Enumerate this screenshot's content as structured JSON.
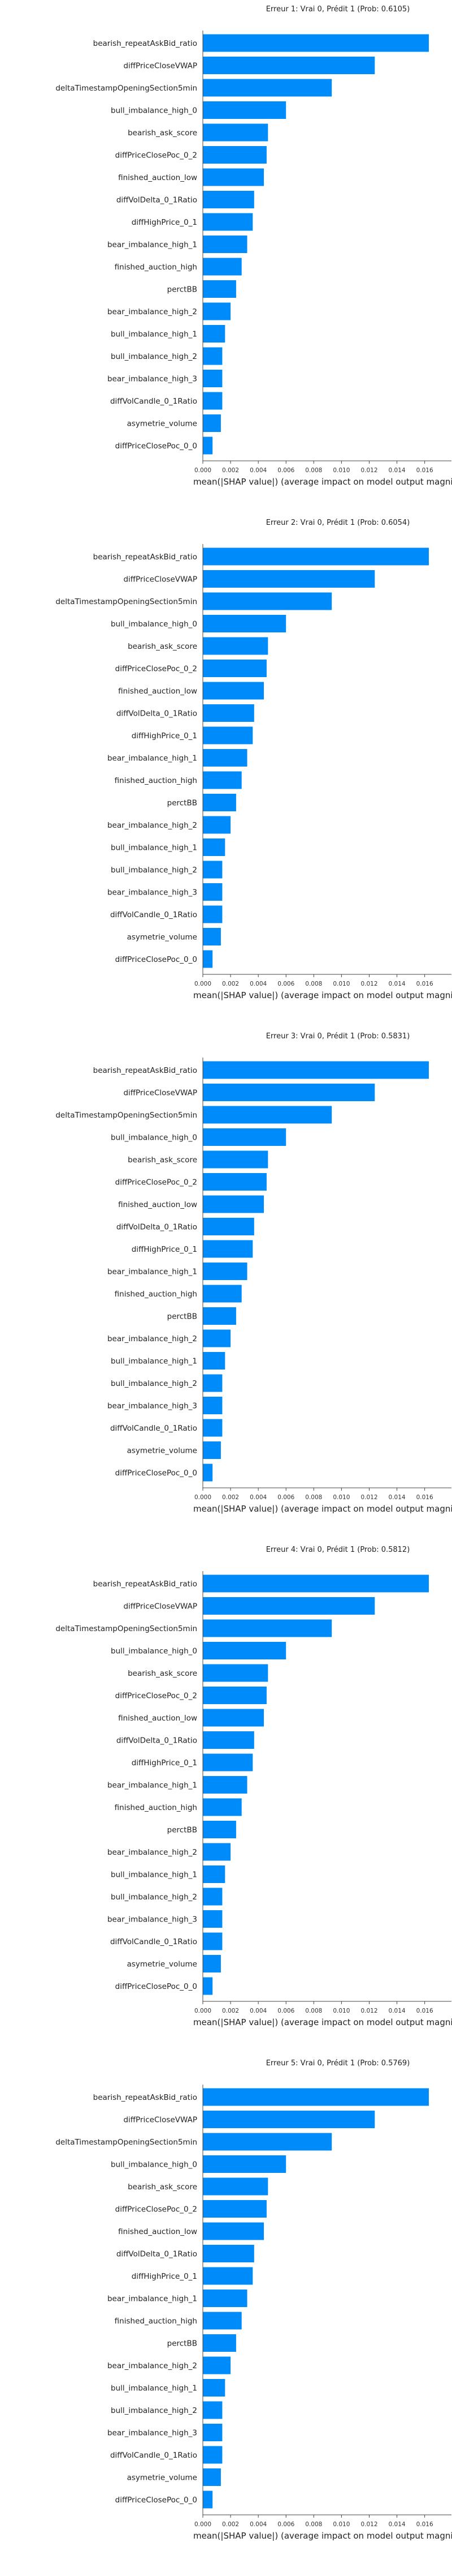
{
  "colors": {
    "bar": "#008bfb",
    "axis": "#444444",
    "text": "#222222",
    "background": "#ffffff"
  },
  "chart_data": [
    {
      "type": "bar",
      "orientation": "horizontal",
      "title": "Erreur 1: Vrai 0, Prédit 1 (Prob: 0.6105)",
      "xlabel": "mean(|SHAP value|) (average impact on model output magnitude)",
      "ylabel": "",
      "categories": [
        "bearish_repeatAskBid_ratio",
        "diffPriceCloseVWAP",
        "deltaTimestampOpeningSection5min",
        "bull_imbalance_high_0",
        "bearish_ask_score",
        "diffPriceClosePoc_0_2",
        "finished_auction_low",
        "diffVolDelta_0_1Ratio",
        "diffHighPrice_0_1",
        "bear_imbalance_high_1",
        "finished_auction_high",
        "perctBB",
        "bear_imbalance_high_2",
        "bull_imbalance_high_1",
        "bull_imbalance_high_2",
        "bear_imbalance_high_3",
        "diffVolCandle_0_1Ratio",
        "asymetrie_volume",
        "diffPriceClosePoc_0_0"
      ],
      "values": [
        0.0163,
        0.0124,
        0.0093,
        0.006,
        0.0047,
        0.0046,
        0.0044,
        0.0037,
        0.0036,
        0.0032,
        0.0028,
        0.0024,
        0.002,
        0.0016,
        0.0014,
        0.0014,
        0.0014,
        0.0013,
        0.0007
      ],
      "xlim": [
        0,
        0.0163
      ],
      "xticks": [
        "0.000",
        "0.002",
        "0.004",
        "0.006",
        "0.008",
        "0.010",
        "0.012",
        "0.014",
        "0.016"
      ],
      "grid": false
    },
    {
      "type": "bar",
      "orientation": "horizontal",
      "title": "Erreur 2: Vrai 0, Prédit 1 (Prob: 0.6054)",
      "xlabel": "mean(|SHAP value|) (average impact on model output magnitude)",
      "ylabel": "",
      "categories": [
        "bearish_repeatAskBid_ratio",
        "diffPriceCloseVWAP",
        "deltaTimestampOpeningSection5min",
        "bull_imbalance_high_0",
        "bearish_ask_score",
        "diffPriceClosePoc_0_2",
        "finished_auction_low",
        "diffVolDelta_0_1Ratio",
        "diffHighPrice_0_1",
        "bear_imbalance_high_1",
        "finished_auction_high",
        "perctBB",
        "bear_imbalance_high_2",
        "bull_imbalance_high_1",
        "bull_imbalance_high_2",
        "bear_imbalance_high_3",
        "diffVolCandle_0_1Ratio",
        "asymetrie_volume",
        "diffPriceClosePoc_0_0"
      ],
      "values": [
        0.0163,
        0.0124,
        0.0093,
        0.006,
        0.0047,
        0.0046,
        0.0044,
        0.0037,
        0.0036,
        0.0032,
        0.0028,
        0.0024,
        0.002,
        0.0016,
        0.0014,
        0.0014,
        0.0014,
        0.0013,
        0.0007
      ],
      "xlim": [
        0,
        0.0163
      ],
      "xticks": [
        "0.000",
        "0.002",
        "0.004",
        "0.006",
        "0.008",
        "0.010",
        "0.012",
        "0.014",
        "0.016"
      ],
      "grid": false
    },
    {
      "type": "bar",
      "orientation": "horizontal",
      "title": "Erreur 3: Vrai 0, Prédit 1 (Prob: 0.5831)",
      "xlabel": "mean(|SHAP value|) (average impact on model output magnitude)",
      "ylabel": "",
      "categories": [
        "bearish_repeatAskBid_ratio",
        "diffPriceCloseVWAP",
        "deltaTimestampOpeningSection5min",
        "bull_imbalance_high_0",
        "bearish_ask_score",
        "diffPriceClosePoc_0_2",
        "finished_auction_low",
        "diffVolDelta_0_1Ratio",
        "diffHighPrice_0_1",
        "bear_imbalance_high_1",
        "finished_auction_high",
        "perctBB",
        "bear_imbalance_high_2",
        "bull_imbalance_high_1",
        "bull_imbalance_high_2",
        "bear_imbalance_high_3",
        "diffVolCandle_0_1Ratio",
        "asymetrie_volume",
        "diffPriceClosePoc_0_0"
      ],
      "values": [
        0.0163,
        0.0124,
        0.0093,
        0.006,
        0.0047,
        0.0046,
        0.0044,
        0.0037,
        0.0036,
        0.0032,
        0.0028,
        0.0024,
        0.002,
        0.0016,
        0.0014,
        0.0014,
        0.0014,
        0.0013,
        0.0007
      ],
      "xlim": [
        0,
        0.0163
      ],
      "xticks": [
        "0.000",
        "0.002",
        "0.004",
        "0.006",
        "0.008",
        "0.010",
        "0.012",
        "0.014",
        "0.016"
      ],
      "grid": false
    },
    {
      "type": "bar",
      "orientation": "horizontal",
      "title": "Erreur 4: Vrai 0, Prédit 1 (Prob: 0.5812)",
      "xlabel": "mean(|SHAP value|) (average impact on model output magnitude)",
      "ylabel": "",
      "categories": [
        "bearish_repeatAskBid_ratio",
        "diffPriceCloseVWAP",
        "deltaTimestampOpeningSection5min",
        "bull_imbalance_high_0",
        "bearish_ask_score",
        "diffPriceClosePoc_0_2",
        "finished_auction_low",
        "diffVolDelta_0_1Ratio",
        "diffHighPrice_0_1",
        "bear_imbalance_high_1",
        "finished_auction_high",
        "perctBB",
        "bear_imbalance_high_2",
        "bull_imbalance_high_1",
        "bull_imbalance_high_2",
        "bear_imbalance_high_3",
        "diffVolCandle_0_1Ratio",
        "asymetrie_volume",
        "diffPriceClosePoc_0_0"
      ],
      "values": [
        0.0163,
        0.0124,
        0.0093,
        0.006,
        0.0047,
        0.0046,
        0.0044,
        0.0037,
        0.0036,
        0.0032,
        0.0028,
        0.0024,
        0.002,
        0.0016,
        0.0014,
        0.0014,
        0.0014,
        0.0013,
        0.0007
      ],
      "xlim": [
        0,
        0.0163
      ],
      "xticks": [
        "0.000",
        "0.002",
        "0.004",
        "0.006",
        "0.008",
        "0.010",
        "0.012",
        "0.014",
        "0.016"
      ],
      "grid": false
    },
    {
      "type": "bar",
      "orientation": "horizontal",
      "title": "Erreur 5: Vrai 0, Prédit 1 (Prob: 0.5769)",
      "xlabel": "mean(|SHAP value|) (average impact on model output magnitude)",
      "ylabel": "",
      "categories": [
        "bearish_repeatAskBid_ratio",
        "diffPriceCloseVWAP",
        "deltaTimestampOpeningSection5min",
        "bull_imbalance_high_0",
        "bearish_ask_score",
        "diffPriceClosePoc_0_2",
        "finished_auction_low",
        "diffVolDelta_0_1Ratio",
        "diffHighPrice_0_1",
        "bear_imbalance_high_1",
        "finished_auction_high",
        "perctBB",
        "bear_imbalance_high_2",
        "bull_imbalance_high_1",
        "bull_imbalance_high_2",
        "bear_imbalance_high_3",
        "diffVolCandle_0_1Ratio",
        "asymetrie_volume",
        "diffPriceClosePoc_0_0"
      ],
      "values": [
        0.0163,
        0.0124,
        0.0093,
        0.006,
        0.0047,
        0.0046,
        0.0044,
        0.0037,
        0.0036,
        0.0032,
        0.0028,
        0.0024,
        0.002,
        0.0016,
        0.0014,
        0.0014,
        0.0014,
        0.0013,
        0.0007
      ],
      "xlim": [
        0,
        0.0163
      ],
      "xticks": [
        "0.000",
        "0.002",
        "0.004",
        "0.006",
        "0.008",
        "0.010",
        "0.012",
        "0.014",
        "0.016"
      ],
      "grid": false
    }
  ]
}
